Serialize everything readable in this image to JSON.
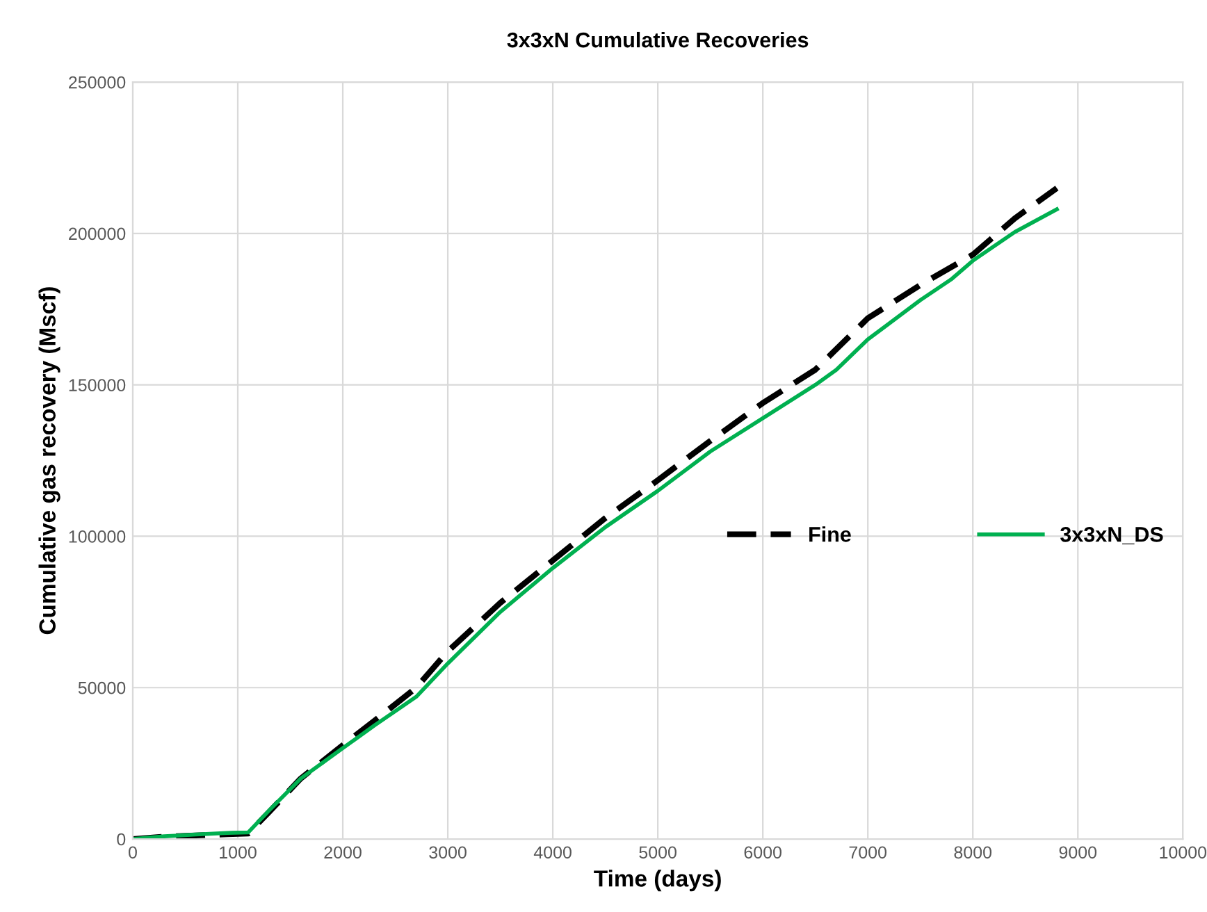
{
  "chart_data": {
    "type": "line",
    "title": "3x3xN Cumulative Recoveries",
    "xlabel": "Time (days)",
    "ylabel": "Cumulative gas recovery (Mscf)",
    "xlim": [
      0,
      10000
    ],
    "xticks": [
      0,
      1000,
      2000,
      3000,
      4000,
      5000,
      6000,
      7000,
      8000,
      9000,
      10000
    ],
    "ylim": [
      0,
      250000
    ],
    "yticks": [
      0,
      50000,
      100000,
      150000,
      200000,
      250000
    ],
    "grid": true,
    "legend": "center right",
    "series": [
      {
        "name": "Fine",
        "color": "#000000",
        "line_style": "dashed",
        "x": [
          0,
          300,
          600,
          900,
          1100,
          1300,
          1600,
          2000,
          2300,
          2700,
          3000,
          3500,
          4000,
          4500,
          5000,
          5500,
          6000,
          6500,
          7000,
          7500,
          8000,
          8400,
          8800
        ],
        "values": [
          0,
          800,
          1200,
          1600,
          1800,
          9000,
          20000,
          31000,
          39000,
          50000,
          62000,
          78000,
          92000,
          106000,
          118500,
          131500,
          144000,
          155000,
          172000,
          183000,
          193000,
          205000,
          215000
        ]
      },
      {
        "name": "3x3xN_DS",
        "color": "#00b050",
        "line_style": "solid",
        "x": [
          0,
          300,
          600,
          900,
          1100,
          1300,
          1600,
          2000,
          2300,
          2700,
          3000,
          3500,
          4000,
          4500,
          5000,
          5500,
          6000,
          6500,
          6700,
          7000,
          7500,
          7800,
          8000,
          8400,
          8800
        ],
        "values": [
          0,
          900,
          1500,
          2000,
          2200,
          9500,
          20000,
          30000,
          37500,
          47000,
          58000,
          75000,
          89500,
          103000,
          115000,
          128000,
          139000,
          150000,
          155000,
          165000,
          178000,
          185000,
          191000,
          200500,
          208000
        ]
      }
    ]
  }
}
